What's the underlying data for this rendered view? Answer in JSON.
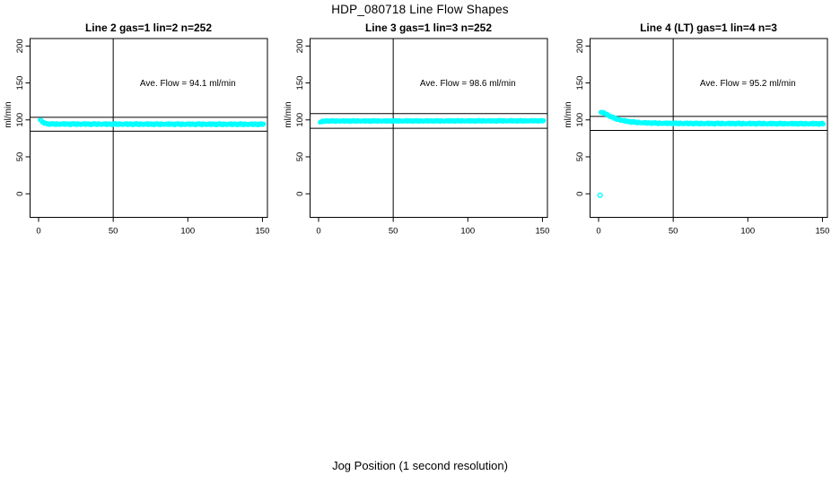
{
  "chart_data": {
    "type": "scatter",
    "title": "HDP_080718  Line Flow Shapes",
    "xlabel": "Jog Position (1 second resolution)",
    "ylabel": "ml/min",
    "x_ticks": [
      0,
      50,
      100,
      150
    ],
    "y_ticks": [
      0,
      50,
      100,
      150,
      200
    ],
    "xlim": [
      -6.2,
      153.5
    ],
    "ylim": [
      -31.5,
      210
    ],
    "grid": false,
    "point_color": "#00ffff",
    "line_color": "#000000",
    "jitter_pattern": [
      0,
      0.5,
      -0.4,
      0.9,
      -0.8,
      0.2,
      0.7,
      -0.6,
      0.3,
      -1.0,
      0.6,
      -0.2,
      1.0,
      -0.5,
      0.4,
      -0.9,
      0.8,
      -0.3,
      0.1,
      -0.7
    ],
    "annotation_pos": [
      100,
      150
    ],
    "panels": [
      {
        "title": "Line 2 gas=1 lin=2 n=252",
        "annotation": "Ave. Flow =  94.1  ml/min",
        "ave_flow": 94.1,
        "ref_lines": [
          103.5,
          84.7
        ],
        "vline": 50,
        "x_start": 1,
        "x_end": 151,
        "band": [
          [
            1,
            100.0
          ],
          [
            2,
            98.2
          ],
          [
            3,
            96.5
          ],
          [
            5,
            95.0
          ],
          [
            8,
            94.4
          ],
          [
            151,
            94.1
          ]
        ],
        "jitter_amp": 1.0,
        "outliers": []
      },
      {
        "title": "Line 3 gas=1 lin=3 n=252",
        "annotation": "Ave. Flow =  98.6  ml/min",
        "ave_flow": 98.6,
        "ref_lines": [
          108.5,
          88.7
        ],
        "vline": 50,
        "x_start": 1,
        "x_end": 151,
        "band": [
          [
            1,
            96.8
          ],
          [
            2,
            97.6
          ],
          [
            4,
            98.5
          ],
          [
            151,
            98.8
          ]
        ],
        "jitter_amp": 0.85,
        "outliers": []
      },
      {
        "title": "Line 4 (LT) gas=1 lin=4 n=3",
        "annotation": "Ave. Flow =  95.2  ml/min",
        "ave_flow": 95.2,
        "ref_lines": [
          104.7,
          85.7
        ],
        "vline": 50,
        "x_start": 1.5,
        "x_end": 151,
        "band": [
          [
            1.5,
            110.3
          ],
          [
            4,
            109.0
          ],
          [
            6,
            106.8
          ],
          [
            9,
            103.6
          ],
          [
            12,
            101.3
          ],
          [
            16,
            99.2
          ],
          [
            20,
            97.8
          ],
          [
            25,
            96.7
          ],
          [
            30,
            96.1
          ],
          [
            40,
            95.5
          ],
          [
            60,
            95.2
          ],
          [
            100,
            95.0
          ],
          [
            151,
            94.8
          ]
        ],
        "jitter_amp": 1.0,
        "outliers": [
          [
            1,
            -2
          ]
        ]
      }
    ]
  }
}
